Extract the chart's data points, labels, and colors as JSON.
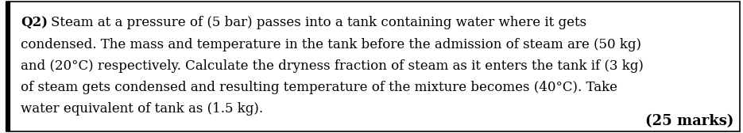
{
  "question_label": "Q2)",
  "line1_rest": "Steam at a pressure of (5 bar) passes into a tank containing water where it gets",
  "lines": [
    "condensed. The mass and temperature in the tank before the admission of steam are (50 kg)",
    "and (20°C) respectively. Calculate the dryness fraction of steam as it enters the tank if (3 kg)",
    "of steam gets condensed and resulting temperature of the mixture becomes (40°C). Take",
    "water equivalent of tank as (1.5 kg)."
  ],
  "marks_text": "(25 marks)",
  "background_color": "#ffffff",
  "border_color": "#000000",
  "text_color": "#000000",
  "font_size": 12.0,
  "marks_font_size": 13.0,
  "label_font_size": 12.0,
  "fig_width": 9.35,
  "fig_height": 1.68,
  "dpi": 100
}
